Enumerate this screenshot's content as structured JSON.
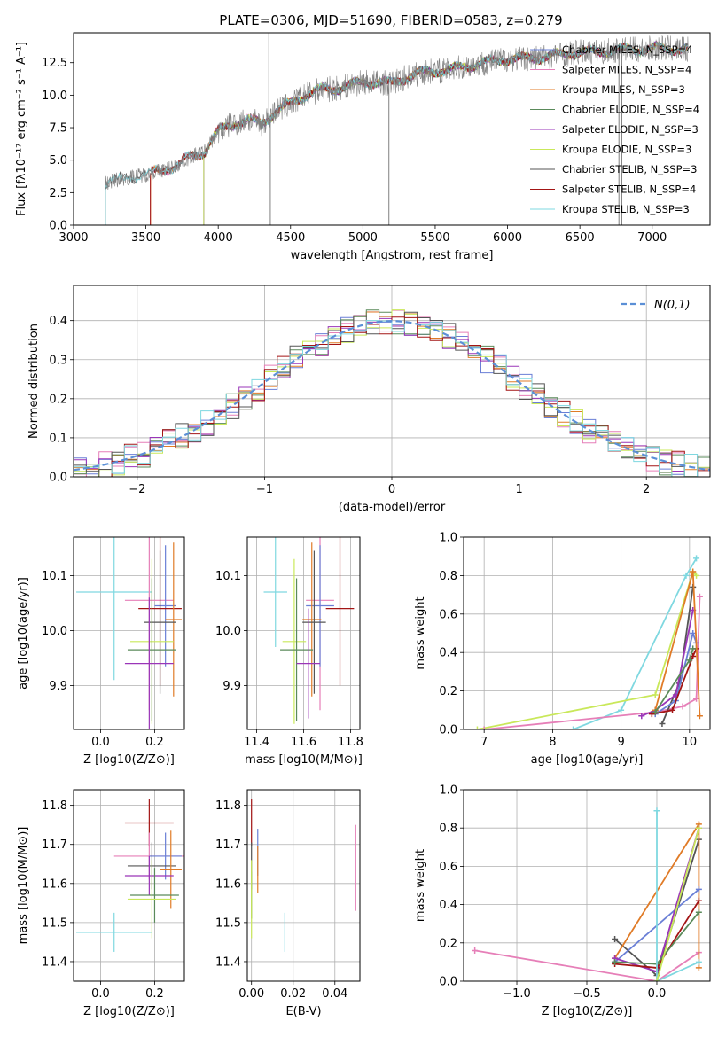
{
  "title": "PLATE=0306, MJD=51690, FIBERID=0583, z=0.279",
  "colors": {
    "chabrier_miles": "#6a7fd6",
    "salpeter_miles": "#e67fb8",
    "kroupa_miles": "#e07b27",
    "chabrier_elodie": "#5a8a5a",
    "salpeter_elodie": "#9a35b8",
    "kroupa_elodie": "#c9e85a",
    "chabrier_stelib": "#555555",
    "salpeter_stelib": "#a31515",
    "kroupa_stelib": "#7fd8e0",
    "normal": "#5b8fd6"
  },
  "chart_data": [
    {
      "id": "spectrum",
      "type": "line",
      "xlabel": "wavelength [Angstrom, rest frame]",
      "ylabel": "Flux [fλ10⁻¹⁷ erg cm⁻² s⁻¹ A⁻¹]",
      "xlim": [
        3000,
        7400
      ],
      "ylim": [
        0,
        14.8
      ],
      "xticks": [
        "3000",
        "3500",
        "4000",
        "4500",
        "5000",
        "5500",
        "6000",
        "6500",
        "7000"
      ],
      "yticks": [
        "0.0",
        "2.5",
        "5.0",
        "7.5",
        "10.0",
        "12.5"
      ],
      "legend_position": "right",
      "legend": [
        {
          "label": "Chabrier MILES, N_SSP=4",
          "color_key": "chabrier_miles"
        },
        {
          "label": "Salpeter MILES, N_SSP=4",
          "color_key": "salpeter_miles"
        },
        {
          "label": "Kroupa MILES, N_SSP=3",
          "color_key": "kroupa_miles"
        },
        {
          "label": "Chabrier ELODIE, N_SSP=4",
          "color_key": "chabrier_elodie"
        },
        {
          "label": "Salpeter ELODIE, N_SSP=3",
          "color_key": "salpeter_elodie"
        },
        {
          "label": "Kroupa ELODIE, N_SSP=3",
          "color_key": "kroupa_elodie"
        },
        {
          "label": "Chabrier STELIB, N_SSP=3",
          "color_key": "chabrier_stelib"
        },
        {
          "label": "Salpeter STELIB, N_SSP=4",
          "color_key": "salpeter_stelib"
        },
        {
          "label": "Kroupa STELIB, N_SSP=3",
          "color_key": "kroupa_stelib"
        }
      ],
      "continuum": [
        [
          3220,
          3.2
        ],
        [
          3300,
          3.5
        ],
        [
          3400,
          3.7
        ],
        [
          3500,
          3.9
        ],
        [
          3600,
          4.2
        ],
        [
          3700,
          4.5
        ],
        [
          3800,
          5.2
        ],
        [
          3900,
          5.6
        ],
        [
          4000,
          7.2
        ],
        [
          4100,
          7.8
        ],
        [
          4200,
          8.1
        ],
        [
          4300,
          7.8
        ],
        [
          4400,
          8.8
        ],
        [
          4500,
          9.3
        ],
        [
          4600,
          10.0
        ],
        [
          4700,
          10.4
        ],
        [
          4800,
          10.5
        ],
        [
          4900,
          10.7
        ],
        [
          5000,
          11.0
        ],
        [
          5100,
          11.0
        ],
        [
          5200,
          10.9
        ],
        [
          5300,
          11.4
        ],
        [
          5400,
          11.7
        ],
        [
          5500,
          11.9
        ],
        [
          5600,
          11.9
        ],
        [
          5700,
          12.2
        ],
        [
          5800,
          12.4
        ],
        [
          5900,
          12.6
        ],
        [
          6000,
          12.8
        ],
        [
          6100,
          12.8
        ],
        [
          6200,
          12.9
        ],
        [
          6300,
          13.0
        ],
        [
          6400,
          13.2
        ],
        [
          6500,
          13.3
        ],
        [
          6600,
          13.3
        ],
        [
          6700,
          13.4
        ],
        [
          6800,
          13.5
        ],
        [
          6900,
          13.5
        ],
        [
          7000,
          13.6
        ],
        [
          7100,
          13.6
        ],
        [
          7200,
          13.5
        ]
      ],
      "data_spikes": [
        [
          4350,
          14.8
        ],
        [
          4360,
          0
        ],
        [
          5180,
          0
        ],
        [
          6770,
          0
        ],
        [
          6790,
          0
        ]
      ]
    },
    {
      "id": "residuals",
      "type": "histogram",
      "xlabel": "(data-model)/error",
      "ylabel": "Normed distribution",
      "xlim": [
        -2.5,
        2.5
      ],
      "ylim": [
        0,
        0.49
      ],
      "xticks": [
        "−2",
        "−1",
        "0",
        "1",
        "2"
      ],
      "yticks": [
        "0.0",
        "0.1",
        "0.2",
        "0.3",
        "0.4"
      ],
      "legend_label": "N(0,1)",
      "legend_position": "top-right",
      "bin_width": 0.1,
      "bin_start": -2.5
    },
    {
      "id": "age_vs_Z",
      "type": "errorbar",
      "xlabel": "Z [log10(Z/Z⊙)]",
      "ylabel": "age  [log10(age/yr)]",
      "xlim": [
        -0.1,
        0.31
      ],
      "ylim": [
        9.82,
        10.17
      ],
      "xticks": [
        "0.0",
        "0.2"
      ],
      "yticks": [
        "9.9",
        "10.0",
        "10.1"
      ],
      "points": [
        {
          "k": "kroupa_stelib",
          "x": 0.05,
          "y": 10.07,
          "xe": 0.14,
          "ye": 0.16
        },
        {
          "k": "salpeter_miles",
          "x": 0.18,
          "y": 10.055,
          "xe": 0.09,
          "ye": 0.2
        },
        {
          "k": "chabrier_miles",
          "x": 0.24,
          "y": 10.045,
          "xe": 0.04,
          "ye": 0.11
        },
        {
          "k": "salpeter_stelib",
          "x": 0.22,
          "y": 10.04,
          "xe": 0.08,
          "ye": 0.14
        },
        {
          "k": "kroupa_miles",
          "x": 0.27,
          "y": 10.02,
          "xe": 0.03,
          "ye": 0.14
        },
        {
          "k": "chabrier_stelib",
          "x": 0.22,
          "y": 10.015,
          "xe": 0.06,
          "ye": 0.13
        },
        {
          "k": "kroupa_elodie",
          "x": 0.19,
          "y": 9.98,
          "xe": 0.08,
          "ye": 0.15
        },
        {
          "k": "chabrier_elodie",
          "x": 0.19,
          "y": 9.965,
          "xe": 0.09,
          "ye": 0.13
        },
        {
          "k": "salpeter_elodie",
          "x": 0.18,
          "y": 9.94,
          "xe": 0.09,
          "ye": 0.12
        }
      ]
    },
    {
      "id": "age_vs_mass",
      "type": "errorbar",
      "xlabel": "mass [log10(M/M⊙)]",
      "ylabel": "",
      "xlim": [
        11.36,
        11.84
      ],
      "ylim": [
        9.82,
        10.17
      ],
      "xticks": [
        "11.4",
        "11.6",
        "11.8"
      ],
      "yticks": [
        "9.9",
        "10.0",
        "10.1"
      ],
      "points": [
        {
          "k": "kroupa_stelib",
          "x": 11.48,
          "y": 10.07,
          "xe": 0.05,
          "ye": 0.1
        },
        {
          "k": "salpeter_miles",
          "x": 11.67,
          "y": 10.055,
          "xe": 0.06,
          "ye": 0.2
        },
        {
          "k": "chabrier_miles",
          "x": 11.67,
          "y": 10.045,
          "xe": 0.06,
          "ye": 0.11
        },
        {
          "k": "salpeter_stelib",
          "x": 11.755,
          "y": 10.04,
          "xe": 0.06,
          "ye": 0.14
        },
        {
          "k": "kroupa_miles",
          "x": 11.635,
          "y": 10.02,
          "xe": 0.04,
          "ye": 0.14
        },
        {
          "k": "chabrier_stelib",
          "x": 11.645,
          "y": 10.015,
          "xe": 0.05,
          "ye": 0.13
        },
        {
          "k": "kroupa_elodie",
          "x": 11.56,
          "y": 9.98,
          "xe": 0.05,
          "ye": 0.15
        },
        {
          "k": "chabrier_elodie",
          "x": 11.57,
          "y": 9.965,
          "xe": 0.07,
          "ye": 0.13
        },
        {
          "k": "salpeter_elodie",
          "x": 11.62,
          "y": 9.94,
          "xe": 0.05,
          "ye": 0.1
        }
      ]
    },
    {
      "id": "massweight_vs_age",
      "type": "line",
      "xlabel": "age  [log10(age/yr)]",
      "ylabel": "mass weight",
      "xlim": [
        6.7,
        10.3
      ],
      "ylim": [
        0,
        1.0
      ],
      "xticks": [
        "7",
        "8",
        "9",
        "10"
      ],
      "yticks": [
        "0.0",
        "0.2",
        "0.4",
        "0.6",
        "0.8",
        "1.0"
      ],
      "series": [
        {
          "k": "kroupa_stelib",
          "x": [
            8.3,
            9.0,
            9.95,
            10.1
          ],
          "y": [
            0.0,
            0.1,
            0.8,
            0.89
          ]
        },
        {
          "k": "kroupa_elodie",
          "x": [
            6.9,
            9.5,
            10.05,
            10.1
          ],
          "y": [
            0.0,
            0.18,
            0.82,
            0.8
          ]
        },
        {
          "k": "salpeter_miles",
          "x": [
            7.0,
            9.5,
            9.9,
            10.1,
            10.15
          ],
          "y": [
            0.0,
            0.09,
            0.12,
            0.16,
            0.69
          ]
        },
        {
          "k": "chabrier_stelib",
          "x": [
            9.6,
            9.85,
            10.05
          ],
          "y": [
            0.03,
            0.24,
            0.74
          ]
        },
        {
          "k": "chabrier_miles",
          "x": [
            9.5,
            9.8,
            10.05,
            10.1
          ],
          "y": [
            0.08,
            0.15,
            0.5,
            0.45
          ]
        },
        {
          "k": "salpeter_elodie",
          "x": [
            9.3,
            9.5,
            9.8,
            10.05
          ],
          "y": [
            0.07,
            0.1,
            0.18,
            0.62
          ]
        },
        {
          "k": "salpeter_stelib",
          "x": [
            9.45,
            9.75,
            10.05,
            10.1
          ],
          "y": [
            0.08,
            0.1,
            0.38,
            0.42
          ]
        },
        {
          "k": "kroupa_miles",
          "x": [
            9.5,
            10.05,
            10.15
          ],
          "y": [
            0.1,
            0.82,
            0.07
          ]
        },
        {
          "k": "chabrier_elodie",
          "x": [
            9.5,
            10.0,
            10.05
          ],
          "y": [
            0.09,
            0.36,
            0.42
          ]
        }
      ]
    },
    {
      "id": "mass_vs_Z",
      "type": "errorbar",
      "xlabel": "Z [log10(Z/Z⊙)]",
      "ylabel": "mass [log10(M/M⊙)]",
      "xlim": [
        -0.1,
        0.31
      ],
      "ylim": [
        11.35,
        11.84
      ],
      "xticks": [
        "0.0",
        "0.2"
      ],
      "yticks": [
        "11.4",
        "11.5",
        "11.6",
        "11.7",
        "11.8"
      ],
      "points": [
        {
          "k": "kroupa_stelib",
          "x": 0.05,
          "y": 11.475,
          "xe": 0.14,
          "ye": 0.05
        },
        {
          "k": "salpeter_stelib",
          "x": 0.18,
          "y": 11.755,
          "xe": 0.09,
          "ye": 0.06
        },
        {
          "k": "salpeter_miles",
          "x": 0.18,
          "y": 11.67,
          "xe": 0.13,
          "ye": 0.06
        },
        {
          "k": "chabrier_miles",
          "x": 0.24,
          "y": 11.67,
          "xe": 0.06,
          "ye": 0.06
        },
        {
          "k": "chabrier_stelib",
          "x": 0.19,
          "y": 11.645,
          "xe": 0.09,
          "ye": 0.06
        },
        {
          "k": "kroupa_miles",
          "x": 0.26,
          "y": 11.635,
          "xe": 0.04,
          "ye": 0.1
        },
        {
          "k": "salpeter_elodie",
          "x": 0.18,
          "y": 11.62,
          "xe": 0.09,
          "ye": 0.05
        },
        {
          "k": "chabrier_elodie",
          "x": 0.2,
          "y": 11.57,
          "xe": 0.09,
          "ye": 0.07
        },
        {
          "k": "kroupa_elodie",
          "x": 0.19,
          "y": 11.56,
          "xe": 0.09,
          "ye": 0.1
        }
      ]
    },
    {
      "id": "mass_vs_ebv",
      "type": "errorbar",
      "xlabel": "E(B-V)",
      "ylabel": "",
      "xlim": [
        -0.002,
        0.052
      ],
      "ylim": [
        11.35,
        11.84
      ],
      "xticks": [
        "0.00",
        "0.02",
        "0.04"
      ],
      "yticks": [
        "11.4",
        "11.5",
        "11.6",
        "11.7",
        "11.8"
      ],
      "points": [
        {
          "k": "salpeter_stelib",
          "x": 0.0,
          "y": 11.755,
          "xe": 0,
          "ye": 0.06
        },
        {
          "k": "chabrier_stelib",
          "x": 0.0,
          "y": 11.645,
          "xe": 0,
          "ye": 0.06
        },
        {
          "k": "chabrier_elodie",
          "x": 0.0,
          "y": 11.57,
          "xe": 0,
          "ye": 0.06
        },
        {
          "k": "kroupa_elodie",
          "x": 0.0,
          "y": 11.56,
          "xe": 0,
          "ye": 0.1
        },
        {
          "k": "chabrier_miles",
          "x": 0.003,
          "y": 11.68,
          "xe": 0,
          "ye": 0.06
        },
        {
          "k": "kroupa_miles",
          "x": 0.003,
          "y": 11.635,
          "xe": 0,
          "ye": 0.06
        },
        {
          "k": "kroupa_stelib",
          "x": 0.016,
          "y": 11.475,
          "xe": 0,
          "ye": 0.05
        },
        {
          "k": "salpeter_miles",
          "x": 0.05,
          "y": 11.64,
          "xe": 0,
          "ye": 0.11
        }
      ]
    },
    {
      "id": "massweight_vs_Z",
      "type": "line",
      "xlabel": "Z [log10(Z/Z⊙)]",
      "ylabel": "mass weight",
      "xlim": [
        -1.38,
        0.38
      ],
      "ylim": [
        0,
        1.0
      ],
      "xticks": [
        "−1.0",
        "−0.5",
        "0.0"
      ],
      "yticks": [
        "0.0",
        "0.2",
        "0.4",
        "0.6",
        "0.8",
        "1.0"
      ],
      "series": [
        {
          "k": "salpeter_miles",
          "x": [
            -1.3,
            0.0,
            0.3
          ],
          "y": [
            0.16,
            0.0,
            0.15
          ]
        },
        {
          "k": "chabrier_stelib",
          "x": [
            -0.3,
            0.0,
            0.3
          ],
          "y": [
            0.22,
            0.03,
            0.74
          ]
        },
        {
          "k": "kroupa_miles",
          "x": [
            -0.3,
            0.3,
            0.3
          ],
          "y": [
            0.12,
            0.82,
            0.07
          ]
        },
        {
          "k": "chabrier_miles",
          "x": [
            -0.3,
            0.3
          ],
          "y": [
            0.1,
            0.48
          ]
        },
        {
          "k": "salpeter_elodie",
          "x": [
            -0.3,
            0.0,
            0.3
          ],
          "y": [
            0.12,
            0.05,
            0.8
          ]
        },
        {
          "k": "salpeter_stelib",
          "x": [
            -0.3,
            0.0,
            0.3
          ],
          "y": [
            0.09,
            0.07,
            0.42
          ]
        },
        {
          "k": "chabrier_elodie",
          "x": [
            -0.3,
            0.0,
            0.3
          ],
          "y": [
            0.1,
            0.09,
            0.36
          ]
        },
        {
          "k": "kroupa_stelib",
          "x": [
            0.0,
            0.0,
            0.3
          ],
          "y": [
            0.89,
            0.0,
            0.1
          ]
        },
        {
          "k": "kroupa_elodie",
          "x": [
            0.0,
            0.3
          ],
          "y": [
            0.0,
            0.8
          ]
        }
      ]
    }
  ]
}
